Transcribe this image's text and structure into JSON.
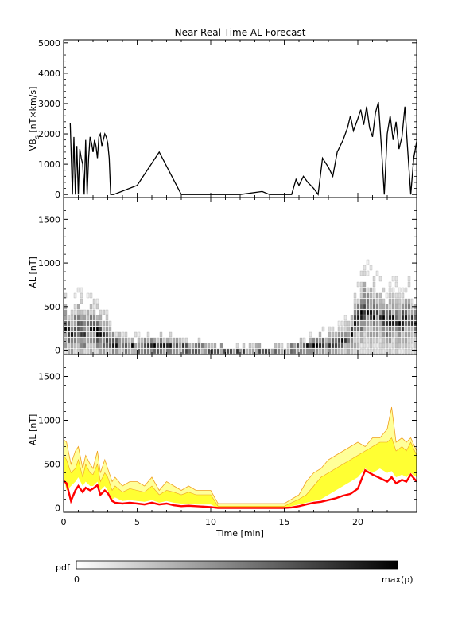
{
  "chart_data": {
    "title": "Near Real Time AL Forecast",
    "xlabel": "Time [min]",
    "xlim": [
      0,
      24
    ],
    "xticks": [
      0,
      5,
      10,
      15,
      20
    ],
    "panels": [
      {
        "type": "line",
        "ylabel_main": "VB",
        "ylabel_sub": "s",
        "ylabel_rest": " [nT×km/s]",
        "ylim": [
          -100,
          5100
        ],
        "yticks": [
          0,
          1000,
          2000,
          3000,
          4000,
          5000
        ],
        "series": [
          {
            "x": [
              0.45,
              0.6,
              0.7,
              0.8,
              0.9,
              1.0,
              1.1,
              1.2,
              1.3,
              1.4,
              1.5,
              1.6,
              1.7,
              1.8,
              1.9,
              2.0,
              2.1,
              2.2,
              2.3,
              2.4,
              2.5,
              2.6,
              2.7,
              2.8,
              2.9,
              3.0,
              3.1,
              3.2,
              3.4,
              5.0,
              6.5,
              8.0,
              10.0,
              12.0,
              13.5,
              14.0,
              15.0,
              15.5,
              15.8,
              16.0,
              16.3,
              16.6,
              17.0,
              17.3,
              17.6,
              18.0,
              18.3,
              18.6,
              19.0,
              19.3,
              19.5,
              19.7,
              20.0,
              20.2,
              20.4,
              20.6,
              20.8,
              21.0,
              21.2,
              21.4,
              21.6,
              21.8,
              22.0,
              22.2,
              22.4,
              22.6,
              22.8,
              23.0,
              23.2,
              23.4,
              23.6,
              23.8,
              24.0
            ],
            "y": [
              2350,
              0,
              1900,
              0,
              1600,
              0,
              1500,
              1200,
              1000,
              0,
              1800,
              0,
              1200,
              1900,
              1700,
              1400,
              1800,
              1600,
              1200,
              1900,
              2000,
              1600,
              1800,
              2000,
              1900,
              1700,
              1200,
              0,
              0,
              300,
              1400,
              0,
              0,
              0,
              100,
              0,
              0,
              0,
              500,
              300,
              600,
              400,
              200,
              0,
              1200,
              900,
              600,
              1400,
              1800,
              2200,
              2600,
              2100,
              2500,
              2800,
              2300,
              2900,
              2200,
              1900,
              2700,
              3050,
              1600,
              0,
              2000,
              2600,
              1800,
              2400,
              1500,
              1900,
              2900,
              1400,
              0,
              1200,
              1750
            ]
          }
        ]
      },
      {
        "type": "heatmap",
        "ylabel": "−AL [nT]",
        "ylim": [
          -50,
          1750
        ],
        "yticks": [
          0,
          500,
          1000,
          1500
        ],
        "median_x": [
          0,
          0.5,
          1,
          1.5,
          2,
          2.5,
          3,
          3.5,
          4,
          5,
          6,
          7,
          8,
          9,
          10,
          11,
          12,
          13,
          14,
          15,
          16,
          17,
          18,
          19,
          19.5,
          20,
          20.5,
          21,
          21.5,
          22,
          22.5,
          23,
          23.5,
          24
        ],
        "median_y": [
          300,
          150,
          250,
          200,
          230,
          180,
          120,
          60,
          40,
          30,
          40,
          30,
          20,
          15,
          5,
          0,
          0,
          0,
          0,
          0,
          20,
          50,
          70,
          90,
          150,
          350,
          450,
          400,
          380,
          300,
          350,
          320,
          350,
          300
        ],
        "spread_y": [
          500,
          400,
          500,
          450,
          450,
          400,
          350,
          200,
          150,
          150,
          200,
          180,
          150,
          120,
          100,
          60,
          60,
          60,
          60,
          60,
          80,
          150,
          200,
          250,
          300,
          500,
          600,
          550,
          500,
          450,
          500,
          450,
          500,
          450
        ]
      },
      {
        "type": "area",
        "ylabel": "−AL [nT]",
        "ylim": [
          -50,
          1750
        ],
        "yticks": [
          0,
          500,
          1000,
          1500
        ],
        "x": [
          0,
          0.2,
          0.5,
          0.8,
          1,
          1.3,
          1.5,
          1.8,
          2,
          2.3,
          2.5,
          2.8,
          3,
          3.3,
          3.5,
          4,
          4.5,
          5,
          5.5,
          6,
          6.5,
          7,
          7.5,
          8,
          8.5,
          9,
          9.5,
          10,
          10.5,
          11,
          11.5,
          12,
          12.5,
          13,
          13.5,
          14,
          14.5,
          15,
          15.5,
          16,
          16.5,
          17,
          17.5,
          18,
          18.5,
          19,
          19.5,
          20,
          20.5,
          21,
          21.5,
          22,
          22.3,
          22.6,
          23,
          23.3,
          23.6,
          24
        ],
        "upper_outline": [
          780,
          750,
          500,
          650,
          700,
          450,
          600,
          500,
          450,
          650,
          400,
          550,
          450,
          300,
          350,
          250,
          300,
          300,
          250,
          350,
          200,
          300,
          250,
          200,
          250,
          200,
          200,
          200,
          50,
          50,
          50,
          50,
          50,
          50,
          50,
          50,
          50,
          50,
          100,
          150,
          300,
          400,
          450,
          550,
          600,
          650,
          700,
          750,
          700,
          800,
          800,
          900,
          1150,
          750,
          800,
          750,
          800,
          650
        ],
        "band_high": [
          600,
          550,
          400,
          450,
          550,
          350,
          500,
          400,
          380,
          500,
          300,
          400,
          350,
          200,
          250,
          180,
          220,
          200,
          180,
          250,
          150,
          200,
          180,
          150,
          180,
          150,
          150,
          150,
          20,
          20,
          20,
          20,
          20,
          20,
          20,
          20,
          20,
          20,
          60,
          100,
          150,
          250,
          350,
          400,
          450,
          500,
          550,
          600,
          650,
          700,
          750,
          750,
          800,
          650,
          700,
          650,
          750,
          600
        ],
        "band_low": [
          350,
          200,
          250,
          300,
          350,
          250,
          300,
          250,
          250,
          300,
          200,
          250,
          200,
          100,
          120,
          80,
          90,
          80,
          70,
          90,
          60,
          80,
          60,
          50,
          50,
          40,
          40,
          40,
          0,
          0,
          0,
          0,
          0,
          0,
          0,
          0,
          0,
          0,
          20,
          40,
          60,
          80,
          100,
          150,
          200,
          250,
          300,
          350,
          450,
          400,
          450,
          400,
          420,
          350,
          380,
          350,
          400,
          350
        ],
        "median": [
          310,
          280,
          80,
          200,
          250,
          180,
          230,
          200,
          220,
          260,
          150,
          200,
          170,
          80,
          60,
          50,
          60,
          50,
          40,
          60,
          40,
          50,
          30,
          20,
          25,
          20,
          15,
          10,
          0,
          0,
          0,
          0,
          0,
          0,
          0,
          0,
          0,
          0,
          5,
          20,
          40,
          60,
          70,
          90,
          110,
          140,
          160,
          220,
          430,
          380,
          340,
          300,
          350,
          280,
          320,
          300,
          380,
          300
        ]
      }
    ],
    "colorbar": {
      "label": "pdf",
      "min_label": "0",
      "max_label": "max(p)"
    },
    "colors": {
      "vbs_line": "#000000",
      "band_fill": "#ffff33",
      "band_outline": "#f0a020",
      "median_line": "#ff0000",
      "pdf_low": "#ffffff",
      "pdf_high": "#000000"
    }
  }
}
